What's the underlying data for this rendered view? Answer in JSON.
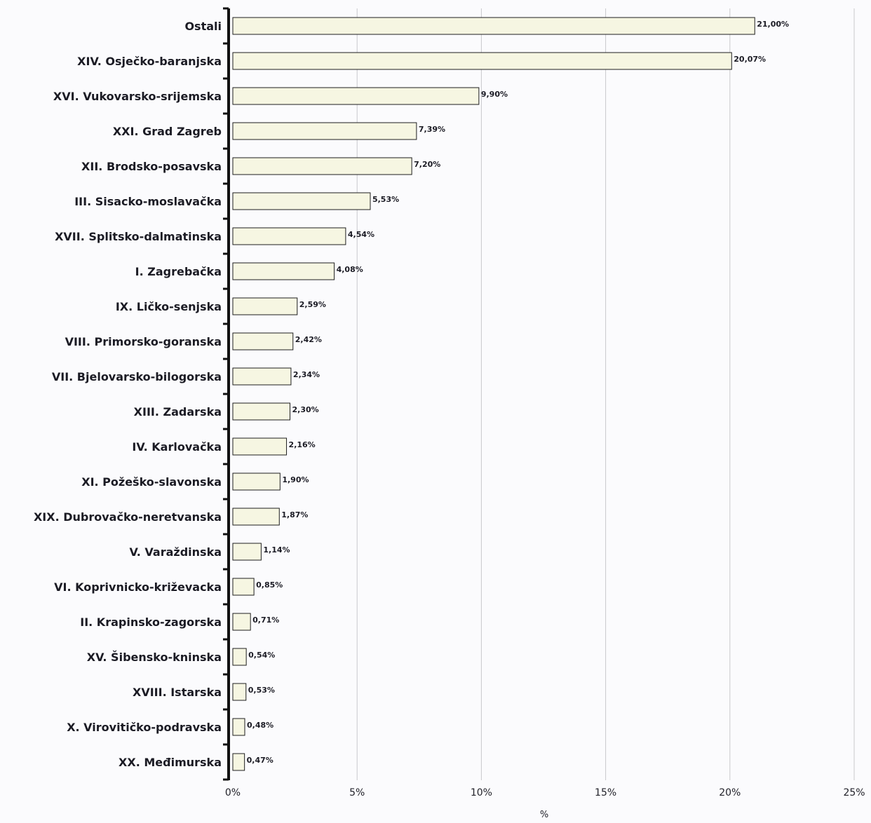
{
  "chart_data": {
    "type": "bar",
    "orientation": "horizontal",
    "categories": [
      "Ostali",
      "XIV. Osječko-baranjska",
      "XVI. Vukovarsko-srijemska",
      "XXI. Grad Zagreb",
      "XII. Brodsko-posavska",
      "III. Sisacko-moslavačka",
      "XVII. Splitsko-dalmatinska",
      "I. Zagrebačka",
      "IX. Ličko-senjska",
      "VIII. Primorsko-goranska",
      "VII. Bjelovarsko-bilogorska",
      "XIII. Zadarska",
      "IV. Karlovačka",
      "XI. Požeško-slavonska",
      "XIX. Dubrovačko-neretvanska",
      "V. Varaždinska",
      "VI. Koprivnicko-križevacka",
      "II. Krapinsko-zagorska",
      "XV. Šibensko-kninska",
      "XVIII. Istarska",
      "X. Virovitičko-podravska",
      "XX. Međimurska"
    ],
    "values": [
      21.0,
      20.07,
      9.9,
      7.39,
      7.2,
      5.53,
      4.54,
      4.08,
      2.59,
      2.42,
      2.34,
      2.3,
      2.16,
      1.9,
      1.87,
      1.14,
      0.85,
      0.71,
      0.54,
      0.53,
      0.48,
      0.47
    ],
    "value_labels": [
      "21,00%",
      "20,07%",
      "9,90%",
      "7,39%",
      "7,20%",
      "5,53%",
      "4,54%",
      "4,08%",
      "2,59%",
      "2,42%",
      "2,34%",
      "2,30%",
      "2,16%",
      "1,90%",
      "1,87%",
      "1,14%",
      "0,85%",
      "0,71%",
      "0,54%",
      "0,53%",
      "0,48%",
      "0,47%"
    ],
    "xlim": [
      0,
      25
    ],
    "xticks": [
      "0%",
      "5%",
      "10%",
      "15%",
      "20%",
      "25%"
    ],
    "xlabel": "%",
    "grid": true,
    "colors": {
      "bar_fill": "#f6f6e2",
      "bar_stroke": "#1e1e1e",
      "grid": "#c8c8cc",
      "axis": "#111111"
    }
  }
}
